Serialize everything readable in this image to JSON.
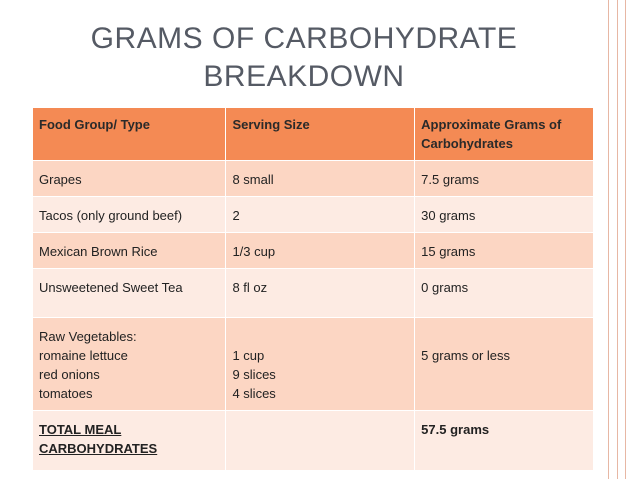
{
  "title": {
    "line1": "GRAMS OF CARBOHYDRATE",
    "line2": "BREAKDOWN"
  },
  "table": {
    "headers": [
      "Food Group/ Type",
      "Serving Size",
      "Approximate Grams of Carbohydrates"
    ],
    "rows": [
      [
        "Grapes",
        "8 small",
        "7.5 grams"
      ],
      [
        "Tacos (only ground beef)",
        "2",
        "30 grams"
      ],
      [
        "Mexican Brown Rice",
        "1/3 cup",
        "15 grams"
      ],
      [
        "Unsweetened Sweet Tea",
        "8 fl oz",
        "0 grams"
      ]
    ],
    "veg_row": {
      "col1": [
        "Raw Vegetables:",
        "romaine lettuce",
        "red onions",
        "tomatoes"
      ],
      "col2": [
        "1 cup",
        "9 slices",
        "4 slices"
      ],
      "col3": "5 grams or less"
    },
    "total_row": {
      "col1": [
        "TOTAL MEAL",
        "CARBOHYDRATES"
      ],
      "col2": "",
      "col3": "57.5 grams"
    }
  },
  "colors": {
    "header": "#f48a54",
    "row_odd": "#fcd6c3",
    "row_even": "#fdebe3",
    "title": "#555a64"
  }
}
